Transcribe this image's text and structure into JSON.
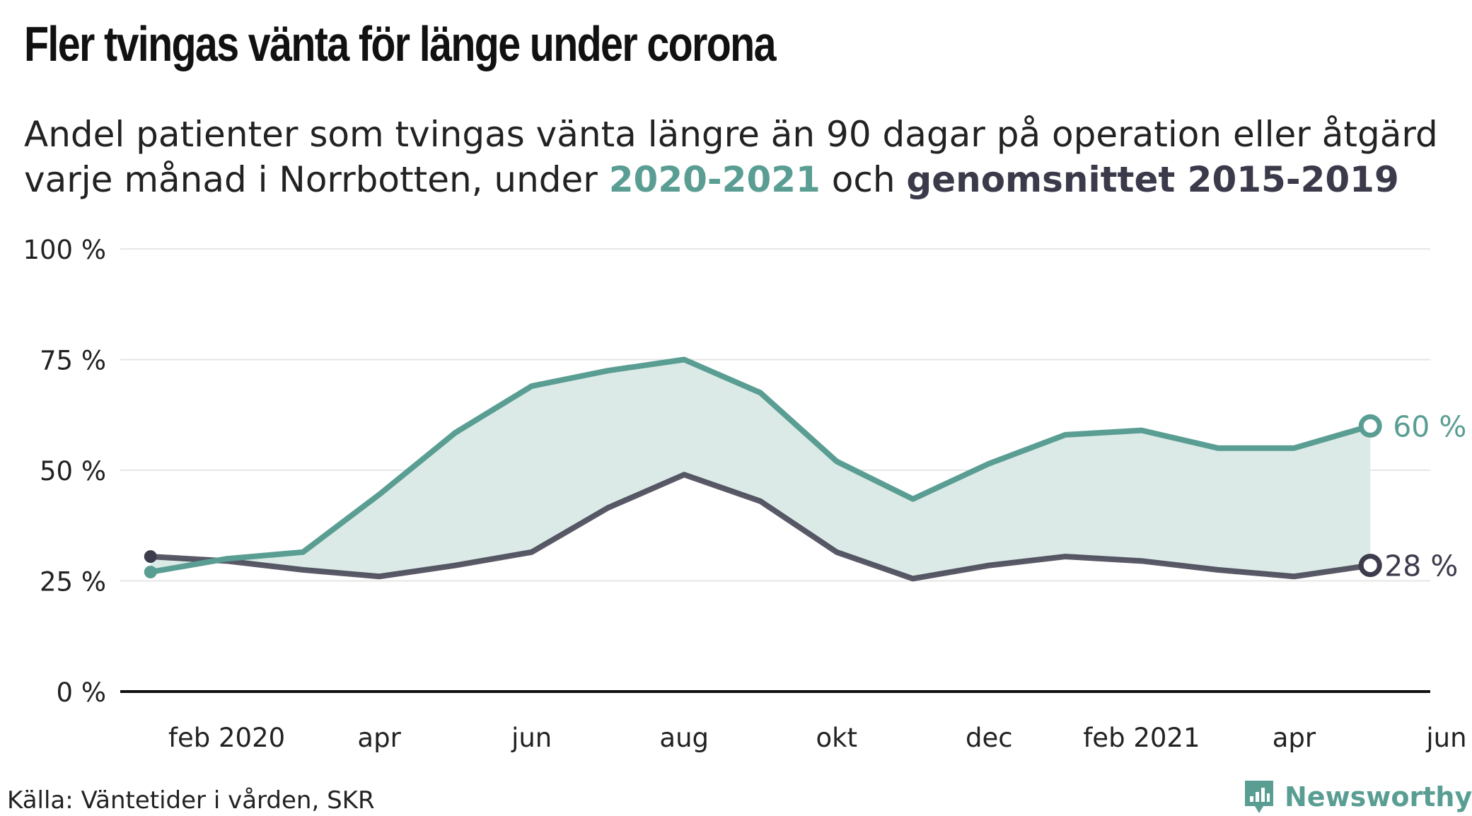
{
  "header": {
    "title": "Fler tvingas vänta för länge under corona",
    "subtitle_line1": "Andel patienter som tvingas vänta längre än 90 dagar på operation eller åtgärd",
    "subtitle_line2_pre": "varje månad i Norrbotten, under ",
    "subtitle_hl1": "2020-2021",
    "subtitle_mid": " och ",
    "subtitle_hl2": "genomsnittet 2015-2019"
  },
  "footer": {
    "source": "Källa: Väntetider i vården, SKR",
    "brand": "Newsworthy"
  },
  "colors": {
    "current": "#5a9e93",
    "average": "#3c3c4c",
    "area": "#dae9e6",
    "grid": "#e6e6e6",
    "axis": "#111111"
  },
  "icons": {
    "brand": "newsworthy-logo-icon"
  },
  "chart_data": {
    "type": "line",
    "x": [
      "2020-01",
      "2020-02",
      "2020-03",
      "2020-04",
      "2020-05",
      "2020-06",
      "2020-07",
      "2020-08",
      "2020-09",
      "2020-10",
      "2020-11",
      "2020-12",
      "2021-01",
      "2021-02",
      "2021-03",
      "2021-04",
      "2021-05"
    ],
    "x_ticks": [
      {
        "x": "2020-02",
        "label": "feb 2020"
      },
      {
        "x": "2020-04",
        "label": "apr"
      },
      {
        "x": "2020-06",
        "label": "jun"
      },
      {
        "x": "2020-08",
        "label": "aug"
      },
      {
        "x": "2020-10",
        "label": "okt"
      },
      {
        "x": "2020-12",
        "label": "dec"
      },
      {
        "x": "2021-02",
        "label": "feb 2021"
      },
      {
        "x": "2021-04",
        "label": "apr"
      },
      {
        "x": "2021-06",
        "label": "jun"
      }
    ],
    "xlim": [
      "2019-12",
      "2021-06"
    ],
    "series": [
      {
        "name": "2020-2021",
        "values": [
          27,
          30,
          31.5,
          44.5,
          58.5,
          69,
          72.5,
          75,
          67.5,
          52,
          43.5,
          51.5,
          58,
          59,
          55,
          55,
          60
        ]
      },
      {
        "name": "genomsnittet 2015-2019",
        "values": [
          30.5,
          29.5,
          27.5,
          26,
          28.5,
          31.5,
          41.5,
          49,
          43,
          31.5,
          25.5,
          28.5,
          30.5,
          29.5,
          27.5,
          26,
          28.5
        ]
      }
    ],
    "end_labels": [
      "60 %",
      "28 %"
    ],
    "y_ticks": [
      0,
      25,
      50,
      75,
      100
    ],
    "y_tick_labels": [
      "0 %",
      "25 %",
      "50 %",
      "75 %",
      "100 %"
    ],
    "ylim": [
      0,
      100
    ],
    "grid": true,
    "legend": "in subtitle"
  }
}
